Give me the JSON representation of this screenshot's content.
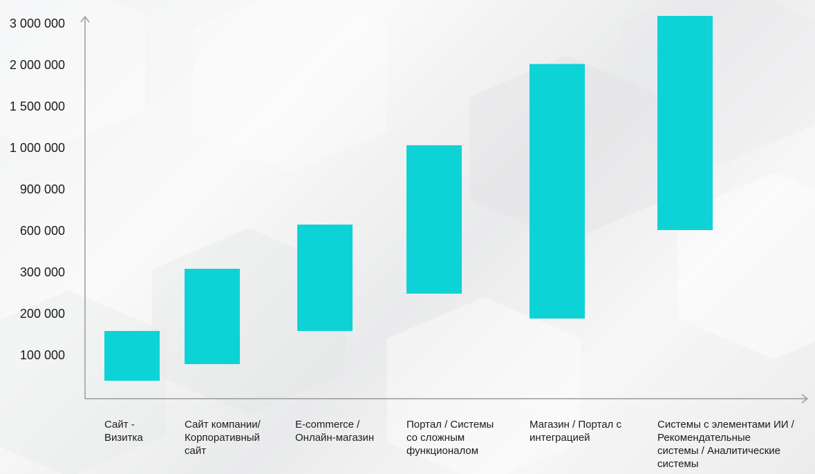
{
  "chart_data": {
    "type": "range-bar",
    "title": "",
    "xlabel": "",
    "ylabel": "",
    "y_tick_labels": [
      "100 000",
      "200 000",
      "300 000",
      "600 000",
      "900 000",
      "1 000 000",
      "1 500 000",
      "2 000 000",
      "3 000 000"
    ],
    "categories": [
      "Сайт -\nВизитка",
      "Сайт компании/\nКорпоративный\nсайт",
      "E-commerce /\nОнлайн-магазин",
      "Портал / Системы\nсо сложным\nфункционалом",
      "Магазин / Портал с\nинтеграцией",
      "Системы с элементами ИИ /\nРекомендательные\nсистемы / Аналитические\nсистемы"
    ],
    "ranges": [
      {
        "low": 40000,
        "high": 160000
      },
      {
        "low": 80000,
        "high": 330000
      },
      {
        "low": 160000,
        "high": 650000
      },
      {
        "low": 250000,
        "high": 1040000
      },
      {
        "low": 190000,
        "high": 2040000
      },
      {
        "low": 610000,
        "high": 3200000
      }
    ],
    "colors": {
      "bar": "#0dd3d6",
      "axis": "#9a9a9a"
    }
  }
}
